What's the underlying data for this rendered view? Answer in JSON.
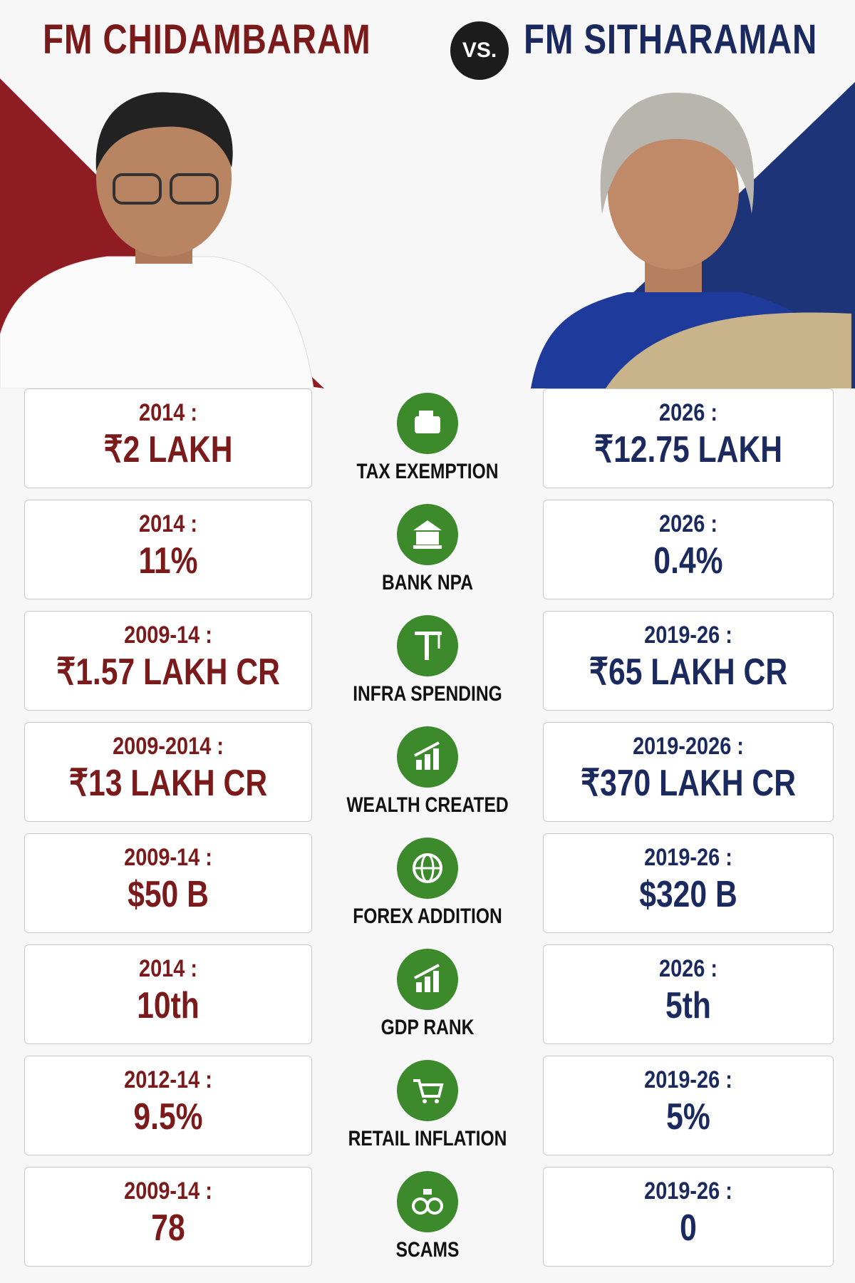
{
  "header": {
    "left_title": "FM CHIDAMBARAM",
    "vs": "VS.",
    "right_title": "FM SITHARAMAN"
  },
  "rows": [
    {
      "metric": "TAX EXEMPTION",
      "left": {
        "period": "2014 :",
        "value": "₹2 LAKH"
      },
      "right": {
        "period": "2026 :",
        "value": "₹12.75 LAKH"
      }
    },
    {
      "metric": "BANK NPA",
      "left": {
        "period": "2014 :",
        "value": "11%"
      },
      "right": {
        "period": "2026 :",
        "value": "0.4%"
      }
    },
    {
      "metric": "INFRA SPENDING",
      "left": {
        "period": "2009-14 :",
        "value": "₹1.57 LAKH CR"
      },
      "right": {
        "period": "2019-26 :",
        "value": "₹65 LAKH CR"
      }
    },
    {
      "metric": "WEALTH CREATED",
      "left": {
        "period": "2009-2014 :",
        "value": "₹13 LAKH CR"
      },
      "right": {
        "period": "2019-2026 :",
        "value": "₹370 LAKH CR"
      }
    },
    {
      "metric": "FOREX ADDITION",
      "left": {
        "period": "2009-14 :",
        "value": "$50 B"
      },
      "right": {
        "period": "2019-26 :",
        "value": "$320 B"
      }
    },
    {
      "metric": "GDP RANK",
      "left": {
        "period": "2014 :",
        "value": "10th"
      },
      "right": {
        "period": "2026 :",
        "value": "5th"
      }
    },
    {
      "metric": "RETAIL INFLATION",
      "left": {
        "period": "2012-14 :",
        "value": "9.5%"
      },
      "right": {
        "period": "2019-26 :",
        "value": "5%"
      }
    },
    {
      "metric": "SCAMS",
      "left": {
        "period": "2009-14 :",
        "value": "78"
      },
      "right": {
        "period": "2019-26 :",
        "value": "0"
      }
    }
  ]
}
